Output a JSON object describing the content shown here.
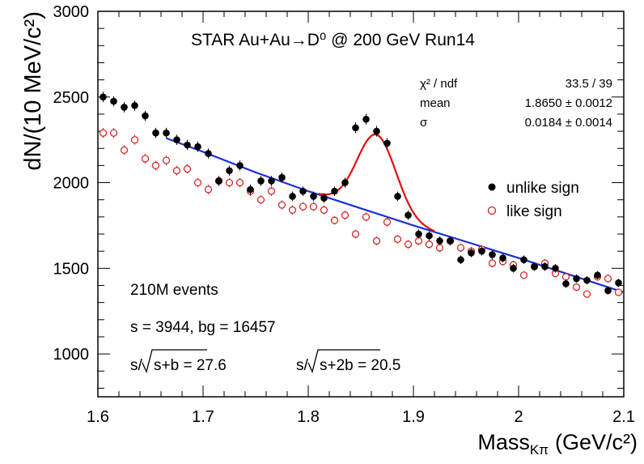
{
  "chart_data": {
    "type": "scatter",
    "title": "STAR Au+Au→D⁰ @ 200 GeV Run14",
    "xlabel_main": "Mass",
    "xlabel_sub": "Kπ",
    "xlabel_unit": "(GeV/c²)",
    "ylabel": "dN/(10 MeV/c²)",
    "xlim": [
      1.6,
      2.1
    ],
    "ylim": [
      750,
      3000
    ],
    "x_ticks": [
      "1.6",
      "1.7",
      "1.8",
      "1.9",
      "2",
      "2.1"
    ],
    "y_ticks": [
      "1000",
      "1500",
      "2000",
      "2500",
      "3000"
    ],
    "grid": false,
    "legend_position": "right",
    "stats": {
      "labels": [
        "χ² / ndf",
        "mean",
        "σ"
      ],
      "values": [
        "33.5 / 39",
        "1.8650 ± 0.0012",
        "0.0184 ± 0.0014"
      ]
    },
    "annotations": {
      "events": "210M events",
      "counts": "s = 3944,  bg = 16457",
      "sig1_pre": "s/",
      "sig1_post": "s+b = 27.6",
      "sig2_pre": "s/",
      "sig2_post": "s+2b = 20.5"
    },
    "series": [
      {
        "name": "unlike sign",
        "marker": "filled-circle",
        "color": "#000000",
        "x": [
          1.605,
          1.615,
          1.625,
          1.635,
          1.645,
          1.655,
          1.665,
          1.675,
          1.685,
          1.695,
          1.705,
          1.715,
          1.725,
          1.735,
          1.745,
          1.755,
          1.765,
          1.775,
          1.785,
          1.795,
          1.805,
          1.815,
          1.825,
          1.835,
          1.845,
          1.855,
          1.865,
          1.875,
          1.885,
          1.895,
          1.905,
          1.915,
          1.925,
          1.935,
          1.945,
          1.955,
          1.965,
          1.975,
          1.985,
          1.995,
          2.005,
          2.015,
          2.025,
          2.035,
          2.045,
          2.055,
          2.065,
          2.075,
          2.085,
          2.095
        ],
        "y": [
          2500,
          2475,
          2440,
          2450,
          2390,
          2290,
          2290,
          2250,
          2220,
          2210,
          2170,
          2010,
          2070,
          2100,
          1960,
          2010,
          2010,
          2030,
          1920,
          1950,
          1920,
          1910,
          1950,
          2000,
          2320,
          2370,
          2300,
          2230,
          1920,
          1810,
          1700,
          1690,
          1660,
          1660,
          1550,
          1590,
          1600,
          1580,
          1560,
          1500,
          1550,
          1510,
          1510,
          1500,
          1410,
          1440,
          1430,
          1460,
          1370,
          1415
        ],
        "err": [
          30,
          30,
          30,
          30,
          30,
          30,
          30,
          30,
          30,
          30,
          29,
          29,
          29,
          29,
          29,
          29,
          29,
          29,
          28,
          28,
          28,
          28,
          28,
          29,
          31,
          31,
          31,
          30,
          28,
          27,
          26,
          26,
          26,
          26,
          25,
          25,
          25,
          25,
          25,
          25,
          25,
          25,
          25,
          25,
          24,
          24,
          24,
          24,
          24,
          24
        ]
      },
      {
        "name": "like sign",
        "marker": "open-circle",
        "color": "#d11a1a",
        "x": [
          1.605,
          1.615,
          1.625,
          1.635,
          1.645,
          1.655,
          1.665,
          1.675,
          1.685,
          1.695,
          1.705,
          1.715,
          1.725,
          1.735,
          1.745,
          1.755,
          1.765,
          1.775,
          1.785,
          1.795,
          1.805,
          1.815,
          1.825,
          1.835,
          1.845,
          1.855,
          1.865,
          1.875,
          1.885,
          1.895,
          1.905,
          1.915,
          1.925,
          1.935,
          1.945,
          1.955,
          1.965,
          1.975,
          1.985,
          1.995,
          2.005,
          2.015,
          2.025,
          2.035,
          2.045,
          2.055,
          2.065,
          2.075,
          2.085,
          2.095
        ],
        "y": [
          2290,
          2290,
          2190,
          2250,
          2140,
          2100,
          2130,
          2070,
          2080,
          2000,
          1960,
          2010,
          2000,
          2000,
          1950,
          1900,
          1950,
          1870,
          1840,
          1860,
          1860,
          1840,
          1780,
          1810,
          1700,
          1800,
          1660,
          1770,
          1670,
          1640,
          1660,
          1640,
          1620,
          1660,
          1620,
          1600,
          1610,
          1530,
          1540,
          1520,
          1460,
          1510,
          1530,
          1470,
          1450,
          1390,
          1350,
          1450,
          1440,
          1360
        ],
        "err": [
          29,
          29,
          28,
          29,
          28,
          28,
          28,
          28,
          28,
          27,
          27,
          27,
          27,
          27,
          27,
          26,
          27,
          26,
          26,
          26,
          26,
          26,
          25,
          26,
          25,
          26,
          25,
          26,
          25,
          25,
          25,
          25,
          25,
          25,
          25,
          25,
          25,
          24,
          24,
          24,
          23,
          24,
          24,
          23,
          23,
          23,
          22,
          23,
          23,
          22
        ]
      }
    ],
    "fits": [
      {
        "kind": "background-fit",
        "color": "#1a2fd6",
        "x_range": [
          1.665,
          2.1
        ],
        "x": [
          1.665,
          1.7,
          1.75,
          1.8,
          1.85,
          1.9,
          1.95,
          2.0,
          2.05,
          2.1
        ],
        "y": [
          2260,
          2180,
          2060,
          1950,
          1850,
          1750,
          1655,
          1560,
          1460,
          1360
        ]
      },
      {
        "kind": "signal-plus-background-fit",
        "color": "#e01010",
        "x_range": [
          1.81,
          1.92
        ],
        "mean": 1.865,
        "sigma": 0.0184,
        "amplitude": 460
      }
    ]
  }
}
